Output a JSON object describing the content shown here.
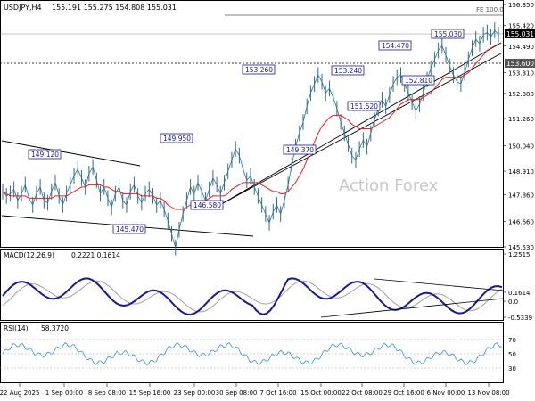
{
  "header": {
    "symbol": "USDJPY,H4",
    "ohlc": "155.191 155.275 154.808 155.031"
  },
  "watermark": "Action Forex",
  "chart_data": [
    {
      "type": "line",
      "role": "price",
      "title": "",
      "y_ticks": [
        "156.350",
        "155.420",
        "154.490",
        "153.310",
        "152.380",
        "151.260",
        "150.040",
        "148.910",
        "147.860",
        "146.660",
        "145.530"
      ],
      "current_price_label": "155.031",
      "level_label": "153.600",
      "fe_label": "FE 100.0",
      "price_labels": [
        {
          "text": "149.120",
          "anchor": "145.47 low region left"
        },
        {
          "text": "145.470"
        },
        {
          "text": "149.950"
        },
        {
          "text": "146.580"
        },
        {
          "text": "153.260"
        },
        {
          "text": "149.370"
        },
        {
          "text": "153.240"
        },
        {
          "text": "151.520"
        },
        {
          "text": "154.470"
        },
        {
          "text": "152.810"
        },
        {
          "text": "155.030"
        }
      ],
      "series": [
        {
          "values": [
            148.0,
            147.8,
            147.9,
            148.1,
            147.6,
            147.9,
            148.3,
            147.7,
            147.4,
            147.9,
            148.2,
            147.6,
            147.5,
            148.0,
            148.4,
            147.8,
            147.4,
            147.9,
            148.3,
            148.7,
            149.0,
            148.6,
            148.2,
            148.8,
            149.1,
            148.5,
            147.9,
            148.2,
            147.7,
            147.3,
            147.9,
            148.2,
            147.6,
            147.4,
            148.0,
            148.3,
            147.8,
            147.5,
            147.9,
            148.1,
            147.8,
            147.4,
            147.6,
            147.2,
            146.7,
            146.1,
            145.5,
            146.3,
            147.0,
            147.6,
            148.2,
            147.9,
            148.4,
            148.0,
            147.6,
            148.1,
            148.6,
            148.3,
            147.9,
            148.4,
            148.9,
            149.4,
            149.9,
            149.6,
            149.0,
            148.5,
            148.7,
            148.2,
            147.8,
            147.4,
            147.0,
            146.6,
            147.1,
            147.4,
            147.0,
            147.6,
            148.3,
            149.2,
            150.0,
            150.6,
            151.1,
            151.8,
            152.4,
            152.8,
            153.2,
            152.9,
            152.4,
            152.6,
            152.2,
            151.7,
            151.1,
            150.6,
            150.1,
            149.6,
            149.4,
            149.9,
            150.3,
            150.0,
            150.6,
            151.2,
            151.7,
            152.1,
            151.8,
            152.3,
            152.8,
            153.1,
            153.2,
            152.8,
            152.4,
            152.0,
            151.6,
            151.9,
            152.4,
            153.0,
            153.5,
            153.9,
            154.3,
            154.5,
            154.1,
            153.6,
            153.2,
            152.9,
            152.8,
            153.3,
            153.9,
            154.4,
            154.8,
            154.6,
            155.0,
            155.1,
            154.9,
            155.2,
            155.0
          ]
        },
        {
          "name": "",
          "values": [
            148.0,
            147.9,
            147.8,
            147.8,
            147.8,
            147.8,
            147.8,
            147.7,
            147.7,
            147.7,
            147.7,
            147.7,
            147.7,
            147.7,
            147.8,
            147.8,
            147.8,
            147.8,
            147.9,
            148.0,
            148.1,
            148.2,
            148.2,
            148.3,
            148.3,
            148.3,
            148.3,
            148.2,
            148.2,
            148.1,
            148.0,
            148.0,
            147.9,
            147.9,
            147.9,
            147.9,
            147.9,
            147.8,
            147.8,
            147.8,
            147.8,
            147.7,
            147.7,
            147.6,
            147.4,
            147.3,
            147.2,
            147.2,
            147.2,
            147.3,
            147.4,
            147.5,
            147.6,
            147.6,
            147.6,
            147.7,
            147.8,
            147.8,
            147.8,
            147.8,
            147.9,
            148.1,
            148.2,
            148.3,
            148.4,
            148.4,
            148.4,
            148.4,
            148.4,
            148.3,
            148.2,
            148.1,
            148.0,
            148.0,
            147.9,
            147.9,
            148.0,
            148.2,
            148.4,
            148.7,
            149.0,
            149.4,
            149.8,
            150.2,
            150.6,
            150.9,
            151.1,
            151.3,
            151.4,
            151.4,
            151.4,
            151.3,
            151.2,
            151.0,
            150.9,
            150.8,
            150.8,
            150.8,
            150.8,
            150.9,
            151.0,
            151.1,
            151.2,
            151.3,
            151.5,
            151.7,
            151.9,
            152.0,
            152.1,
            152.1,
            152.1,
            152.1,
            152.2,
            152.3,
            152.4,
            152.6,
            152.8,
            153.0,
            153.1,
            153.1,
            153.1,
            153.1,
            153.1,
            153.2,
            153.3,
            153.5,
            153.7,
            153.9,
            154.1,
            154.3,
            154.4,
            154.5,
            154.6
          ]
        }
      ]
    },
    {
      "type": "line",
      "role": "macd",
      "label": "MACD(12,26,9)",
      "values_text": "0.2221 0.1614",
      "y_ticks": [
        "1.2515",
        "0.1614",
        "0.0",
        "-0.5339"
      ]
    },
    {
      "type": "line",
      "role": "rsi",
      "label": "RSI(14)",
      "values_text": "58.3720",
      "y_ticks": [
        "70",
        "50",
        "30"
      ]
    }
  ],
  "x_axis": {
    "ticks": [
      "22 Aug 2025",
      "1 Sep 00:00",
      "8 Sep 08:00",
      "15 Sep 16:00",
      "23 Sep 00:00",
      "30 Sep 08:00",
      "7 Oct 16:00",
      "15 Oct 00:00",
      "22 Oct 08:00",
      "29 Oct 16:00",
      "6 Nov 00:00",
      "13 Nov 08:00"
    ]
  },
  "colors": {
    "price": "#2e6e8e",
    "ema": "#e02020",
    "macd": "#1a1a8a",
    "signal": "#a0a0a0",
    "rsi": "#3a8fd8",
    "trend": "#000000",
    "label_border": "#1a1a8a",
    "watermark": "#c8c8c8"
  }
}
